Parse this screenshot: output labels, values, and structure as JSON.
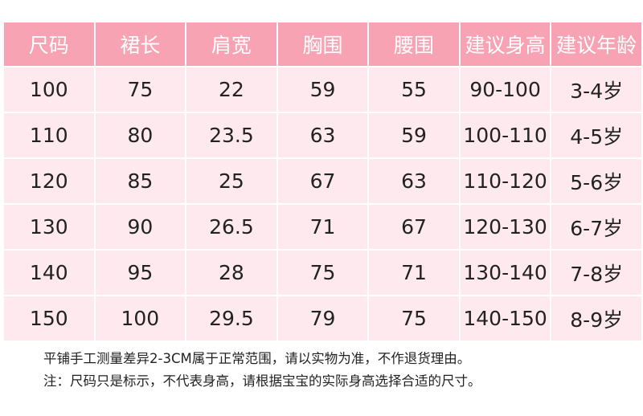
{
  "headers": [
    "尺码",
    "裙长",
    "肩宽",
    "胸围",
    "腰围",
    "建议身高",
    "建议年龄"
  ],
  "rows": [
    [
      "100",
      "75",
      "22",
      "59",
      "55",
      "90-100",
      "3-4岁"
    ],
    [
      "110",
      "80",
      "23.5",
      "63",
      "59",
      "100-110",
      "4-5岁"
    ],
    [
      "120",
      "85",
      "25",
      "67",
      "63",
      "110-120",
      "5-6岁"
    ],
    [
      "130",
      "90",
      "26.5",
      "71",
      "67",
      "120-130",
      "6-7岁"
    ],
    [
      "140",
      "95",
      "28",
      "75",
      "71",
      "130-140",
      "7-8岁"
    ],
    [
      "150",
      "100",
      "29.5",
      "79",
      "75",
      "140-150",
      "8-9岁"
    ]
  ],
  "notes": [
    "平铺手工测量差异2-3CM属于正常范围，请以实物为准，不作退货理由。",
    "注：尺码只是标示，不代表身高，请根据宝宝的实际身高选择合适的尺寸。"
  ],
  "colors": {
    "header": "#f7a3b3",
    "row": "#fde9ee"
  }
}
